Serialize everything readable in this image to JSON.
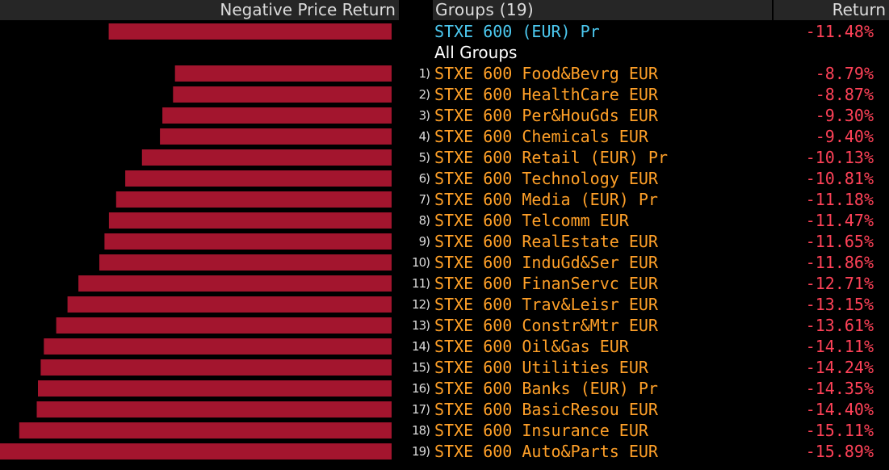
{
  "header": {
    "bar_label": "Negative Price Return",
    "groups_label": "Groups (19)",
    "return_label": "Return"
  },
  "index_row": {
    "name": "STXE 600 (EUR) Pr",
    "return_label": "-11.48%"
  },
  "group_caption": "All Groups",
  "colors": {
    "bar": "#a3152e",
    "name": "#ffa028",
    "return": "#ff4258",
    "index": "#4cc9f0",
    "header_bg": "#262626"
  },
  "chart_data": {
    "type": "bar",
    "orientation": "horizontal",
    "direction": "leftward",
    "title": "Negative Price Return",
    "index": {
      "name": "STXE 600 (EUR) Pr",
      "value": -11.48
    },
    "categories": [
      "STXE 600 Food&Bevrg EUR",
      "STXE 600 HealthCare EUR",
      "STXE 600 Per&HouGds EUR",
      "STXE 600 Chemicals EUR",
      "STXE 600 Retail (EUR) Pr",
      "STXE 600 Technology EUR",
      "STXE 600 Media (EUR) Pr",
      "STXE 600 Telcomm EUR",
      "STXE 600 RealEstate EUR",
      "STXE 600 InduGd&Ser EUR",
      "STXE 600 FinanServc EUR",
      "STXE 600 Trav&Leisr EUR",
      "STXE 600 Constr&Mtr EUR",
      "STXE 600 Oil&Gas EUR",
      "STXE 600 Utilities EUR",
      "STXE 600 Banks (EUR) Pr",
      "STXE 600 BasicResou EUR",
      "STXE 600 Insurance EUR",
      "STXE 600 Auto&Parts EUR"
    ],
    "ranks": [
      "1)",
      "2)",
      "3)",
      "4)",
      "5)",
      "6)",
      "7)",
      "8)",
      "9)",
      "10)",
      "11)",
      "12)",
      "13)",
      "14)",
      "15)",
      "16)",
      "17)",
      "18)",
      "19)"
    ],
    "values": [
      -8.79,
      -8.87,
      -9.3,
      -9.4,
      -10.13,
      -10.81,
      -11.18,
      -11.47,
      -11.65,
      -11.86,
      -12.71,
      -13.15,
      -13.61,
      -14.11,
      -14.24,
      -14.35,
      -14.4,
      -15.11,
      -15.89
    ],
    "value_labels": [
      "-8.79%",
      "-8.87%",
      "-9.30%",
      "-9.40%",
      "-10.13%",
      "-10.81%",
      "-11.18%",
      "-11.47%",
      "-11.65%",
      "-11.86%",
      "-12.71%",
      "-13.15%",
      "-13.61%",
      "-14.11%",
      "-14.24%",
      "-14.35%",
      "-14.40%",
      "-15.11%",
      "-15.89%"
    ],
    "xlim": [
      -15.89,
      0
    ],
    "grid": false,
    "legend": "none"
  }
}
